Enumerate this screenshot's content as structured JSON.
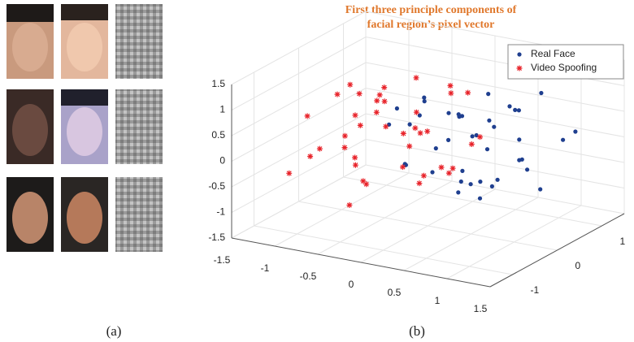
{
  "figure": {
    "label_a": "(a)",
    "label_b": "(b)"
  },
  "chart_data": {
    "type": "scatter3d",
    "title_lines": [
      "First three principle components of",
      "facial region’s pixel vector"
    ],
    "xlim": [
      -1.5,
      1.5
    ],
    "xticks": [
      -1.5,
      -1,
      -0.5,
      0,
      0.5,
      1,
      1.5
    ],
    "ylim": [
      -1.5,
      1.5
    ],
    "yticks": [
      -1,
      0,
      1
    ],
    "zlim": [
      -1.5,
      1.5
    ],
    "zticks": [
      -1.5,
      -1,
      -0.5,
      0,
      0.5,
      1,
      1.5
    ],
    "grid": true,
    "legend": "top-right",
    "series": [
      {
        "name": "Real Face",
        "color": "#1f3f8f",
        "marker": "dot",
        "x": [
          0.2,
          0.5,
          0.8,
          1.1,
          1.3,
          0.9,
          0.4,
          0.1,
          -0.2,
          0.6,
          1.0,
          0.3,
          -0.1,
          0.7,
          1.2,
          0.5,
          0.0,
          0.8,
          0.3,
          -0.3,
          0.6,
          0.9,
          0.2,
          1.4,
          0.4,
          -0.4,
          0.7,
          0.1,
          1.0,
          0.5,
          -0.2,
          0.8,
          0.3,
          0.6,
          1.1,
          0.0,
          0.4,
          0.9,
          -0.1,
          0.2
        ],
        "y": [
          0.3,
          -0.2,
          0.5,
          0.1,
          -0.4,
          0.8,
          0.0,
          -0.6,
          0.2,
          0.4,
          -0.1,
          0.9,
          -0.3,
          0.6,
          0.2,
          -0.5,
          0.7,
          -0.8,
          0.1,
          0.5,
          -0.2,
          0.3,
          -0.9,
          0.6,
          0.4,
          -0.1,
          0.0,
          0.8,
          -0.6,
          0.2,
          0.3,
          0.5,
          -0.4,
          -0.7,
          0.9,
          0.1,
          0.6,
          -0.3,
          -0.5,
          0.7
        ],
        "z": [
          0.6,
          0.9,
          0.2,
          -0.1,
          0.4,
          1.0,
          -0.3,
          0.8,
          0.5,
          -0.6,
          1.2,
          0.1,
          -0.2,
          0.7,
          -0.5,
          1.1,
          0.3,
          0.0,
          -0.8,
          0.6,
          -0.4,
          0.9,
          0.2,
          0.5,
          -0.7,
          0.4,
          1.3,
          -0.1,
          0.6,
          -0.9,
          0.8,
          -0.2,
          0.3,
          0.7,
          0.1,
          -0.5,
          0.4,
          -0.3,
          1.0,
          0.0
        ]
      },
      {
        "name": "Video Spoofing",
        "color": "#e8232a",
        "marker": "star",
        "x": [
          -0.8,
          -1.1,
          -0.5,
          -0.2,
          -1.3,
          -0.6,
          -0.9,
          -0.3,
          0.0,
          -0.7,
          -1.0,
          -0.4,
          0.2,
          -0.6,
          -1.2,
          -0.1,
          -0.8,
          0.3,
          -0.5,
          -0.9,
          0.1,
          -0.3,
          -1.1,
          -0.7,
          0.4,
          -0.2,
          -0.6,
          -1.4,
          0.0,
          -0.4,
          -0.8,
          0.2,
          -1.0,
          -0.5,
          0.5,
          -0.3,
          -0.7,
          -0.1,
          0.6,
          -0.9
        ],
        "y": [
          0.4,
          -0.3,
          0.7,
          0.1,
          -0.6,
          0.9,
          0.2,
          -0.8,
          0.5,
          -0.1,
          0.3,
          0.6,
          -0.4,
          -0.7,
          0.8,
          0.0,
          -0.2,
          0.4,
          -0.9,
          0.1,
          0.7,
          -0.5,
          0.5,
          0.2,
          -0.3,
          0.9,
          -0.6,
          0.0,
          0.3,
          -0.2,
          0.6,
          -0.8,
          -0.1,
          0.4,
          0.2,
          -0.4,
          0.8,
          0.1,
          -0.6,
          -0.9
        ],
        "z": [
          0.5,
          -0.2,
          0.9,
          0.3,
          -0.6,
          0.1,
          0.7,
          -0.4,
          1.0,
          -0.8,
          0.2,
          -0.1,
          0.6,
          0.4,
          -0.3,
          -0.7,
          1.1,
          0.0,
          0.3,
          -0.5,
          0.8,
          1.2,
          -0.9,
          0.4,
          -0.2,
          0.6,
          -1.0,
          0.2,
          -0.5,
          0.9,
          -0.1,
          0.5,
          0.8,
          -0.7,
          0.3,
          1.3,
          -0.3,
          -0.6,
          0.1,
          0.0
        ]
      }
    ]
  }
}
